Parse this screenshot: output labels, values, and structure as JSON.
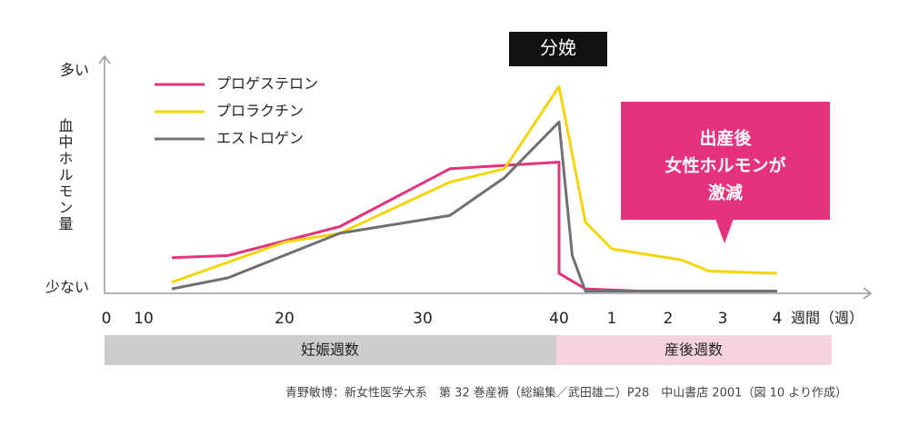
{
  "chart_data": {
    "type": "line",
    "y_label": "血中ホルモン量",
    "ylim": [
      0,
      100
    ],
    "yticks": [
      {
        "value": 0,
        "label": "少ない"
      },
      {
        "value": 100,
        "label": "多い"
      }
    ],
    "xticks": [
      0,
      10,
      20,
      30,
      40,
      {
        "value": 44,
        "label": "1"
      },
      {
        "value": 48,
        "label": "2"
      },
      {
        "value": 52,
        "label": "3"
      },
      {
        "value": 56,
        "label": "4"
      }
    ],
    "x_unit": "週間（週）",
    "legend": "top-left",
    "series": [
      {
        "name": "プロゲステロン",
        "color": "#e6317e",
        "x": [
          12,
          16,
          24,
          32,
          40,
          40,
          42,
          46,
          56
        ],
        "values": [
          16,
          17,
          30,
          56,
          59,
          9,
          2,
          1,
          1
        ]
      },
      {
        "name": "プロラクチン",
        "color": "#f5d50a",
        "x": [
          12,
          16,
          20,
          24,
          32,
          36,
          40,
          42,
          44,
          49,
          51,
          56
        ],
        "values": [
          5,
          14,
          23,
          27,
          50,
          56,
          93,
          32,
          20,
          15,
          10,
          9
        ]
      },
      {
        "name": "エストロゲン",
        "color": "#707070",
        "x": [
          12,
          16,
          24,
          32,
          36,
          40,
          41,
          42,
          56
        ],
        "values": [
          2,
          7,
          27,
          35,
          52,
          77,
          17,
          1,
          1
        ]
      }
    ],
    "annotations": [
      "分娩"
    ],
    "callout": [
      "出産後",
      "女性ホルモンが",
      "激減"
    ],
    "bands": [
      {
        "label": "妊娠週数"
      },
      {
        "label": "産後週数"
      }
    ],
    "source": "青野敏博：新女性医学大系　第 32 巻産褥（総編集／武田雄二）P28　中山書店 2001（図 10 より作成）"
  }
}
